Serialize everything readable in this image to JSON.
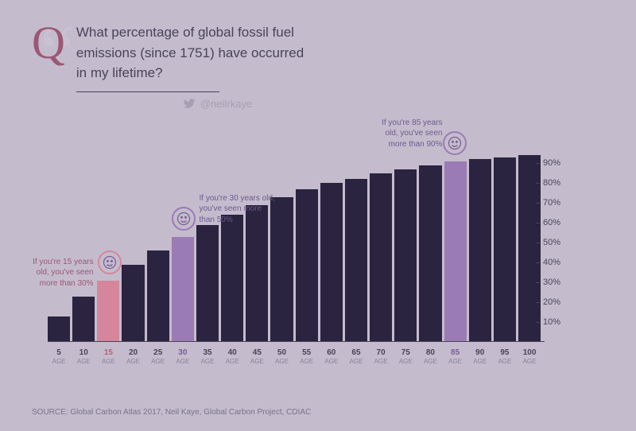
{
  "title": "What percentage of global fossil fuel emissions (since 1751) have occurred in my lifetime?",
  "twitter_handle": "@neilrkaye",
  "source": "SOURCE: Global Carbon Atlas 2017, Neil Kaye, Global Carbon Project, CDIAC",
  "chart": {
    "type": "bar",
    "x_label_word": "AGE",
    "y_axis": {
      "min": 0,
      "max": 100,
      "ticks": [
        10,
        20,
        30,
        40,
        50,
        60,
        70,
        80,
        90
      ],
      "tick_labels": [
        "10%",
        "20%",
        "30%",
        "40%",
        "50%",
        "60%",
        "70%",
        "80%",
        "90%"
      ]
    },
    "bar_color": "#2b2440",
    "highlight_pink": "#d6869a",
    "highlight_purple": "#9b7bb5",
    "background": "#c4bccd",
    "bars": [
      {
        "age": 5,
        "value": 13,
        "highlight": null
      },
      {
        "age": 10,
        "value": 23,
        "highlight": null
      },
      {
        "age": 15,
        "value": 31,
        "highlight": "pink"
      },
      {
        "age": 20,
        "value": 39,
        "highlight": null
      },
      {
        "age": 25,
        "value": 46,
        "highlight": null
      },
      {
        "age": 30,
        "value": 53,
        "highlight": "purple"
      },
      {
        "age": 35,
        "value": 59,
        "highlight": null
      },
      {
        "age": 40,
        "value": 64,
        "highlight": null
      },
      {
        "age": 45,
        "value": 69,
        "highlight": null
      },
      {
        "age": 50,
        "value": 73,
        "highlight": null
      },
      {
        "age": 55,
        "value": 77,
        "highlight": null
      },
      {
        "age": 60,
        "value": 80,
        "highlight": null
      },
      {
        "age": 65,
        "value": 82,
        "highlight": null
      },
      {
        "age": 70,
        "value": 85,
        "highlight": null
      },
      {
        "age": 75,
        "value": 87,
        "highlight": null
      },
      {
        "age": 80,
        "value": 89,
        "highlight": null
      },
      {
        "age": 85,
        "value": 91,
        "highlight": "purple"
      },
      {
        "age": 90,
        "value": 92,
        "highlight": null
      },
      {
        "age": 95,
        "value": 93,
        "highlight": null
      },
      {
        "age": 100,
        "value": 94,
        "highlight": null
      }
    ],
    "callouts": [
      {
        "age": 15,
        "text": "If you're 15 years old, you've seen more than 30%",
        "color": "#9b5773"
      },
      {
        "age": 30,
        "text": "If you're 30 years old, you've seen more than 50%",
        "color": "#6e5a8a"
      },
      {
        "age": 85,
        "text": "If you're 85 years old, you've seen more than 90%",
        "color": "#6e5a8a"
      }
    ]
  }
}
